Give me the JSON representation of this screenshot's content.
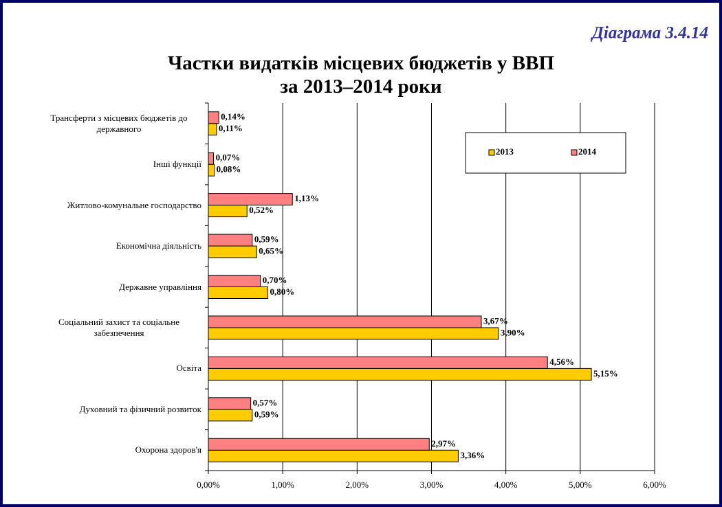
{
  "chart_data": {
    "type": "hbar",
    "annotation": "Діаграма 3.4.14",
    "title": [
      "Частки видатків місцевих бюджетів у ВВП",
      "за 2013–2014 роки"
    ],
    "categories": [
      "Трансферти з місцевих бюджетів до державного",
      "Інші функції",
      "Житлово-комунальне господарство",
      "Економічна діяльність",
      "Державне управління",
      "Соціальний захист та соціальне забезпечення",
      "Освіта",
      "Духовний та фізичний розвиток",
      "Охорона здоров'я"
    ],
    "series": [
      {
        "name": "2013",
        "color": "#ffcc00",
        "values": [
          0.11,
          0.08,
          0.52,
          0.65,
          0.8,
          3.9,
          5.15,
          0.59,
          3.36
        ],
        "value_labels": [
          "0,11%",
          "0,08%",
          "0,52%",
          "0,65%",
          "0,80%",
          "3,90%",
          "5,15%",
          "0,59%",
          "3,36%"
        ]
      },
      {
        "name": "2014",
        "color": "#ff8080",
        "values": [
          0.14,
          0.07,
          1.13,
          0.59,
          0.7,
          3.67,
          4.56,
          0.57,
          2.97
        ],
        "value_labels": [
          "0,14%",
          "0,07%",
          "1,13%",
          "0,59%",
          "0,70%",
          "3,67%",
          "4,56%",
          "0,57%",
          "2,97%"
        ]
      }
    ],
    "xlim": [
      0,
      6
    ],
    "xticks": [
      {
        "value": 0,
        "label": "0,00%"
      },
      {
        "value": 1,
        "label": "1,00%"
      },
      {
        "value": 2,
        "label": "2,00%"
      },
      {
        "value": 3,
        "label": "3,00%"
      },
      {
        "value": 4,
        "label": "4,00%"
      },
      {
        "value": 5,
        "label": "5,00%"
      },
      {
        "value": 6,
        "label": "6,00%"
      }
    ],
    "grid": true
  }
}
